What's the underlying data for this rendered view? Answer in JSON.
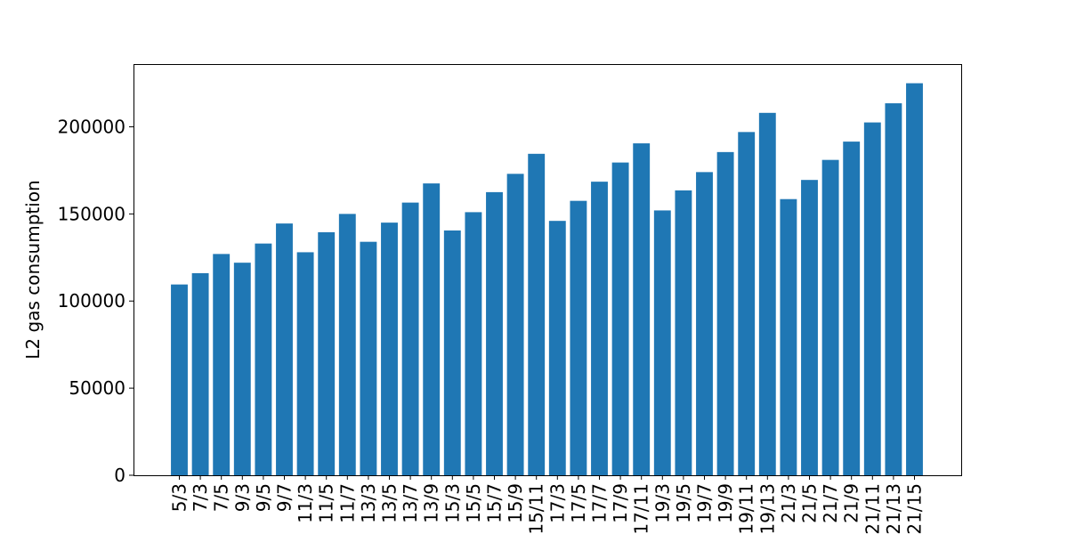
{
  "chart_data": {
    "type": "bar",
    "title": "",
    "xlabel": "",
    "ylabel": "L2 gas consumption",
    "ylim": [
      0,
      236000
    ],
    "yticks": [
      0,
      50000,
      100000,
      150000,
      200000
    ],
    "ytick_labels": [
      "0",
      "50000",
      "100000",
      "150000",
      "200000"
    ],
    "grid": false,
    "legend": "none",
    "bar_color": "#1f77b4",
    "categories": [
      "5/3",
      "7/3",
      "7/5",
      "9/3",
      "9/5",
      "9/7",
      "11/3",
      "11/5",
      "11/7",
      "13/3",
      "13/5",
      "13/7",
      "13/9",
      "15/3",
      "15/5",
      "15/7",
      "15/9",
      "15/11",
      "17/3",
      "17/5",
      "17/7",
      "17/9",
      "17/11",
      "19/3",
      "19/5",
      "19/7",
      "19/9",
      "19/11",
      "19/13",
      "21/3",
      "21/5",
      "21/7",
      "21/9",
      "21/11",
      "21/13",
      "21/15"
    ],
    "values": [
      109500,
      116000,
      127000,
      122000,
      133000,
      144500,
      128000,
      139500,
      150000,
      134000,
      145000,
      156500,
      167500,
      140500,
      151000,
      162500,
      173000,
      184500,
      146000,
      157500,
      168500,
      179500,
      190500,
      152000,
      163500,
      174000,
      185500,
      197000,
      208000,
      158500,
      169500,
      181000,
      191500,
      202500,
      213500,
      225000
    ]
  }
}
